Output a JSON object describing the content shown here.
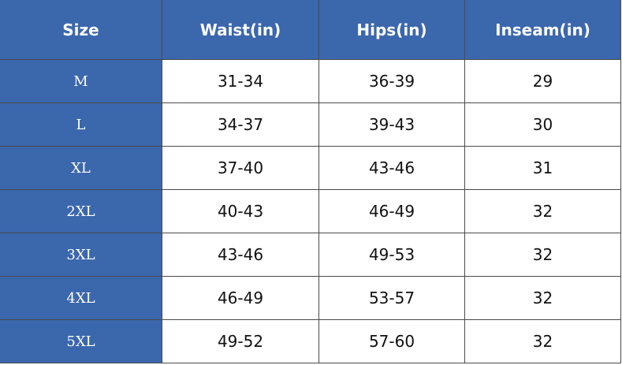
{
  "table": {
    "header": [
      "Size",
      "Waist(in)",
      "Hips(in)",
      "Inseam(in)"
    ],
    "rows": [
      [
        "M",
        "31-34",
        "36-39",
        "29"
      ],
      [
        "L",
        "34-37",
        "39-43",
        "30"
      ],
      [
        "XL",
        "37-40",
        "43-46",
        "31"
      ],
      [
        "2XL",
        "40-43",
        "46-49",
        "32"
      ],
      [
        "3XL",
        "43-46",
        "49-53",
        "32"
      ],
      [
        "4XL",
        "46-49",
        "53-57",
        "32"
      ],
      [
        "5XL",
        "49-52",
        "57-60",
        "32"
      ]
    ]
  }
}
